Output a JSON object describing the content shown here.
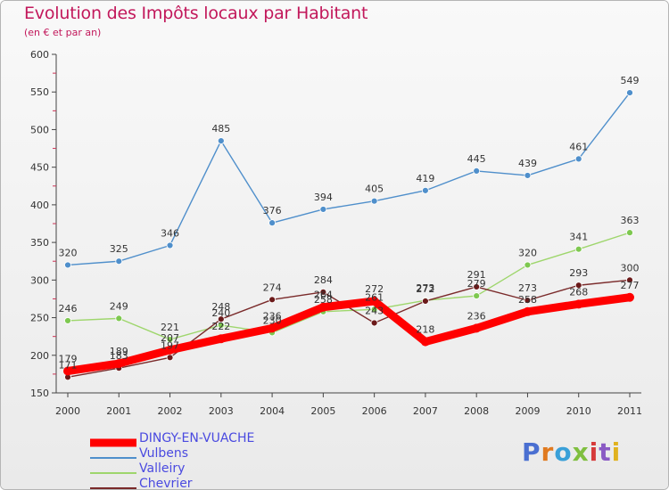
{
  "chart_data": {
    "type": "line",
    "title": "Evolution des Impôts locaux par Habitant",
    "subtitle": "(en € et par an)",
    "x": [
      "2000",
      "2001",
      "2002",
      "2003",
      "2004",
      "2005",
      "2006",
      "2007",
      "2008",
      "2009",
      "2010",
      "2011"
    ],
    "ylim": [
      150,
      600
    ],
    "yticks": [
      150,
      200,
      250,
      300,
      350,
      400,
      450,
      500,
      550,
      600
    ],
    "grid": false,
    "legend_position": "bottom-left",
    "series": [
      {
        "name": "Vulbens",
        "color": "#4f8fcb",
        "marker": "#4f8fcb",
        "values": [
          320,
          325,
          346,
          485,
          376,
          394,
          405,
          419,
          445,
          439,
          461,
          549
        ]
      },
      {
        "name": "Valleiry",
        "color": "#9ed66c",
        "marker": "#7ec850",
        "values": [
          246,
          249,
          221,
          240,
          230,
          258,
          261,
          273,
          279,
          320,
          341,
          363
        ]
      },
      {
        "name": "Chevrier",
        "color": "#7a2a2a",
        "marker": "#6b1a1a",
        "values": [
          171,
          183,
          197,
          248,
          274,
          284,
          243,
          272,
          291,
          273,
          293,
          300
        ]
      },
      {
        "name": "DINGY-EN-VUACHE",
        "color": "#ff0000",
        "marker": "#ff0000",
        "values": [
          179,
          189,
          207,
          222,
          236,
          264,
          272,
          218,
          236,
          258,
          268,
          277
        ]
      }
    ]
  },
  "legend": [
    {
      "name": "DINGY-EN-VUACHE",
      "color": "#ff0000",
      "thick": true
    },
    {
      "name": "Vulbens",
      "color": "#4f8fcb",
      "thick": false
    },
    {
      "name": "Valleiry",
      "color": "#9ed66c",
      "thick": false
    },
    {
      "name": "Chevrier",
      "color": "#7a2a2a",
      "thick": false
    }
  ],
  "logo": {
    "text": "Proxiti"
  }
}
